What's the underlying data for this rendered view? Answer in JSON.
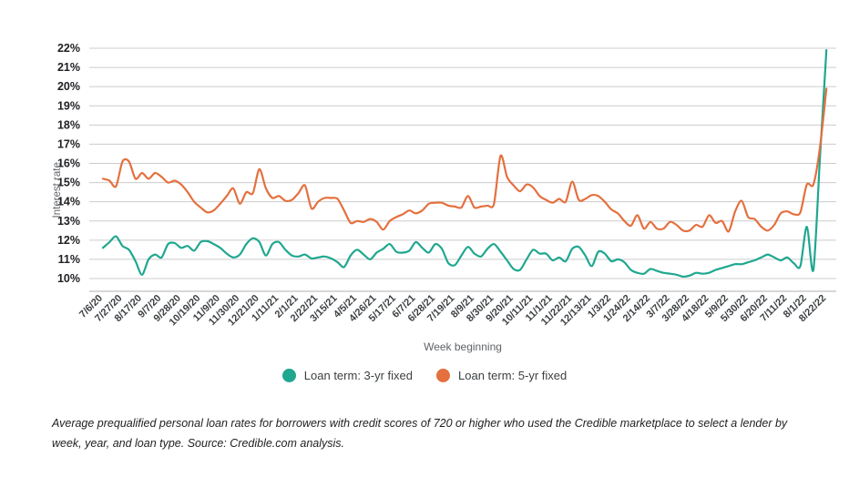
{
  "accent_colors": {
    "teal": "#1fa78f",
    "orange": "#e4703e",
    "gridline": "#cccccc",
    "axis_line": "#b0b0b0",
    "tick_text": "#3c4043",
    "axis_title_text": "#5f6368"
  },
  "chart_data": {
    "type": "line",
    "title": "",
    "xlabel": "Week beginning",
    "ylabel": "Interest rate",
    "ylim": [
      10,
      22
    ],
    "y_tick_labels": [
      "22%",
      "21%",
      "20%",
      "19%",
      "18%",
      "17%",
      "16%",
      "15%",
      "14%",
      "13%",
      "12%",
      "11%",
      "10%"
    ],
    "y_tick_values": [
      22,
      21,
      20,
      19,
      18,
      17,
      16,
      15,
      14,
      13,
      12,
      11,
      10
    ],
    "grid": "horizontal",
    "legend_position": "bottom",
    "x_is_weekly": true,
    "weeks_per_tick": 3,
    "x_tick_labels": [
      "7/6/20",
      "7/27/20",
      "8/17/20",
      "9/7/20",
      "9/28/20",
      "10/19/20",
      "11/9/20",
      "11/30/20",
      "12/21/20",
      "1/11/21",
      "2/1/21",
      "2/22/21",
      "3/15/21",
      "4/5/21",
      "4/26/21",
      "5/17/21",
      "6/7/21",
      "6/28/21",
      "7/19/21",
      "8/9/21",
      "8/30/21",
      "9/20/21",
      "10/11/21",
      "11/1/21",
      "11/22/21",
      "12/13/21",
      "1/3/22",
      "1/24/22",
      "2/14/22",
      "3/7/22",
      "3/28/22",
      "4/18/22",
      "5/9/22",
      "5/30/22",
      "6/20/22",
      "7/11/22",
      "8/1/22",
      "8/22/22"
    ],
    "series": [
      {
        "name": "Loan term: 3-yr fixed",
        "color": "#1fa78f",
        "values": [
          11.6,
          11.9,
          12.2,
          11.7,
          11.5,
          10.9,
          10.2,
          11.0,
          11.25,
          11.1,
          11.8,
          11.85,
          11.6,
          11.7,
          11.45,
          11.9,
          11.95,
          11.8,
          11.6,
          11.3,
          11.1,
          11.25,
          11.8,
          12.1,
          11.9,
          11.2,
          11.8,
          11.9,
          11.5,
          11.2,
          11.15,
          11.25,
          11.05,
          11.1,
          11.15,
          11.05,
          10.85,
          10.6,
          11.2,
          11.5,
          11.25,
          11.0,
          11.35,
          11.55,
          11.8,
          11.4,
          11.35,
          11.45,
          11.9,
          11.6,
          11.35,
          11.8,
          11.55,
          10.8,
          10.7,
          11.2,
          11.65,
          11.3,
          11.15,
          11.55,
          11.8,
          11.4,
          10.95,
          10.5,
          10.45,
          11.0,
          11.5,
          11.3,
          11.3,
          10.95,
          11.1,
          10.9,
          11.55,
          11.65,
          11.2,
          10.65,
          11.4,
          11.3,
          10.9,
          11.0,
          10.85,
          10.45,
          10.3,
          10.25,
          10.5,
          10.4,
          10.3,
          10.25,
          10.2,
          10.1,
          10.15,
          10.3,
          10.25,
          10.3,
          10.45,
          10.55,
          10.65,
          10.75,
          10.75,
          10.85,
          10.95,
          11.1,
          11.25,
          11.1,
          10.95,
          11.1,
          10.8,
          10.65,
          12.7,
          10.45,
          16.2,
          21.9
        ]
      },
      {
        "name": "Loan term: 5-yr fixed",
        "color": "#e4703e",
        "values": [
          15.2,
          15.1,
          14.8,
          16.1,
          16.1,
          15.2,
          15.5,
          15.2,
          15.5,
          15.3,
          15.0,
          15.1,
          14.9,
          14.5,
          14.0,
          13.7,
          13.45,
          13.55,
          13.9,
          14.3,
          14.7,
          13.9,
          14.5,
          14.45,
          15.7,
          14.7,
          14.2,
          14.3,
          14.05,
          14.1,
          14.45,
          14.85,
          13.65,
          14.0,
          14.2,
          14.2,
          14.15,
          13.55,
          12.9,
          13.0,
          12.95,
          13.1,
          12.95,
          12.55,
          13.0,
          13.2,
          13.35,
          13.55,
          13.4,
          13.55,
          13.9,
          13.95,
          13.95,
          13.8,
          13.75,
          13.7,
          14.3,
          13.7,
          13.75,
          13.8,
          13.9,
          16.4,
          15.3,
          14.85,
          14.55,
          14.9,
          14.75,
          14.3,
          14.1,
          13.95,
          14.15,
          14.0,
          15.05,
          14.1,
          14.15,
          14.35,
          14.3,
          14.0,
          13.6,
          13.4,
          13.0,
          12.75,
          13.3,
          12.6,
          12.95,
          12.6,
          12.6,
          12.95,
          12.8,
          12.5,
          12.5,
          12.8,
          12.7,
          13.3,
          12.9,
          13.0,
          12.45,
          13.5,
          14.05,
          13.2,
          13.1,
          12.7,
          12.5,
          12.8,
          13.4,
          13.5,
          13.35,
          13.45,
          14.9,
          14.9,
          16.8,
          19.9
        ]
      }
    ]
  },
  "legend": {
    "items": [
      {
        "label": "Loan term: 3-yr fixed",
        "color": "#1fa78f"
      },
      {
        "label": "Loan term: 5-yr fixed",
        "color": "#e4703e"
      }
    ]
  },
  "caption": {
    "text": "Average prequalified personal loan rates for borrowers with credit scores of 720 or higher who used the Credible marketplace to select a lender by week, year, and loan type. Source: Credible.com analysis."
  }
}
